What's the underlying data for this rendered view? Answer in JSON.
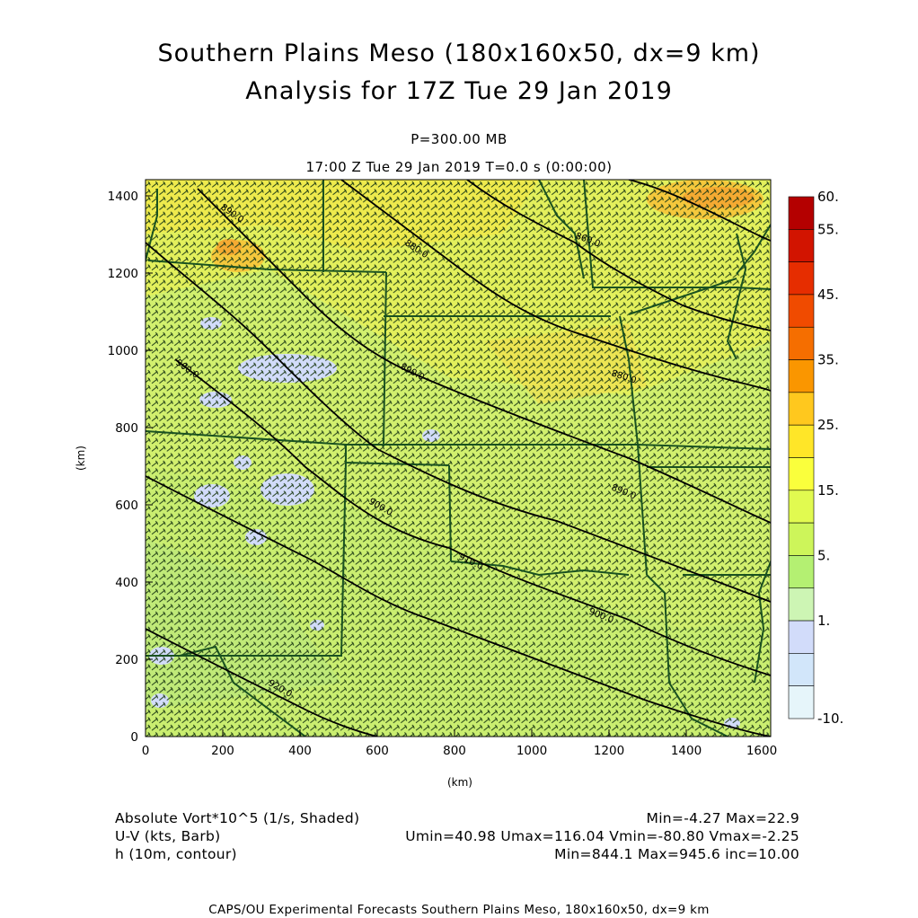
{
  "title_line1": "Southern Plains Meso (180x160x50, dx=9 km)",
  "title_line2": "Analysis for 17Z Tue 29 Jan 2019",
  "level": "P=300.00 MB",
  "valid_time": "17:00 Z Tue 29 Jan 2019    T=0.0 s (0:00:00)",
  "axes": {
    "x_label": "(km)",
    "y_label": "(km)",
    "x_ticks": [
      "0",
      "200",
      "400",
      "600",
      "800",
      "1000",
      "1200",
      "1400",
      "1600"
    ],
    "y_ticks": [
      "0",
      "200",
      "400",
      "600",
      "800",
      "1000",
      "1200",
      "1400"
    ],
    "x_range": [
      0,
      1620
    ],
    "y_range": [
      0,
      1440
    ]
  },
  "colorbar": {
    "labels": [
      "60.",
      "55.",
      "45.",
      "35.",
      "25.",
      "15.",
      "5.",
      "1.",
      "-10."
    ],
    "colors": [
      "#b40000",
      "#d21400",
      "#e62d00",
      "#f04b00",
      "#f56e00",
      "#fa9600",
      "#ffc81e",
      "#ffe628",
      "#faff3c",
      "#e1fa50",
      "#cdf55a",
      "#b4f072",
      "#cdf5b4",
      "#d2dcfa",
      "#d2e6fa",
      "#e6f5fa"
    ]
  },
  "contours": {
    "labels": [
      "920.0",
      "930.0",
      "910.0",
      "920.0",
      "900.0",
      "910.0",
      "890.0",
      "900.0",
      "880.0",
      "890.0",
      "870.0",
      "880.0",
      "860.0",
      "870.0"
    ]
  },
  "legend_info": {
    "left": [
      "Absolute Vort*10^5 (1/s, Shaded)",
      "U-V (kts, Barb)",
      "h (10m, contour)"
    ],
    "right": [
      "Min=-4.27 Max=22.9",
      "Umin=40.98 Umax=116.04 Vmin=-80.80 Vmax=-2.25",
      "Min=844.1 Max=945.6 inc=10.00"
    ]
  },
  "footer": "CAPS/OU Experimental Forecasts  Southern Plains Meso, 180x160x50, dx=9 km"
}
